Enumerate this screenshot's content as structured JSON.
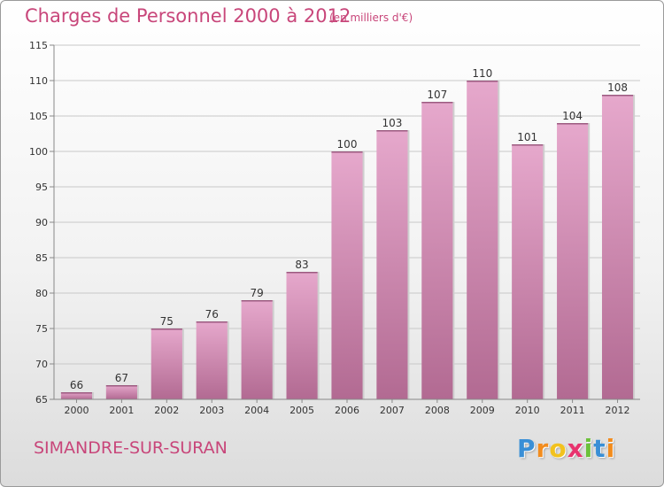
{
  "header": {
    "title": "Charges de Personnel 2000 à 2012",
    "subtitle": "(en milliers d'€)"
  },
  "footer": {
    "commune": "SIMANDRE-SUR-SURAN",
    "brand_letters": [
      "P",
      "r",
      "o",
      "x",
      "i",
      "t",
      "i"
    ],
    "brand_colors": [
      "#3a8fd6",
      "#f28c1e",
      "#f2c21e",
      "#e8336e",
      "#6cc13a",
      "#3a8fd6",
      "#f28c1e"
    ]
  },
  "colors": {
    "bar_light": "#e6a8cc",
    "bar_dark": "#b26a92",
    "axis": "#888888",
    "grid": "#c8c8c8",
    "label": "#333333",
    "accent": "#c8467a"
  },
  "chart_data": {
    "type": "bar",
    "title": "Charges de Personnel 2000 à 2012",
    "subtitle": "(en milliers d'€)",
    "xlabel": "",
    "ylabel": "",
    "categories": [
      "2000",
      "2001",
      "2002",
      "2003",
      "2004",
      "2005",
      "2006",
      "2007",
      "2008",
      "2009",
      "2010",
      "2011",
      "2012"
    ],
    "values": [
      66,
      67,
      75,
      76,
      79,
      83,
      100,
      103,
      107,
      110,
      101,
      104,
      108
    ],
    "value_labels": [
      "66",
      "67",
      "75",
      "76",
      "79",
      "83",
      "100",
      "103",
      "107",
      "110",
      "101",
      "104",
      "108"
    ],
    "ylim": [
      65,
      115
    ],
    "yticks": [
      65,
      70,
      75,
      80,
      85,
      90,
      95,
      100,
      105,
      110,
      115
    ],
    "ytick_labels": [
      "65",
      "70",
      "75",
      "80",
      "85",
      "90",
      "95",
      "100",
      "105",
      "110",
      "115"
    ],
    "grid": true
  }
}
